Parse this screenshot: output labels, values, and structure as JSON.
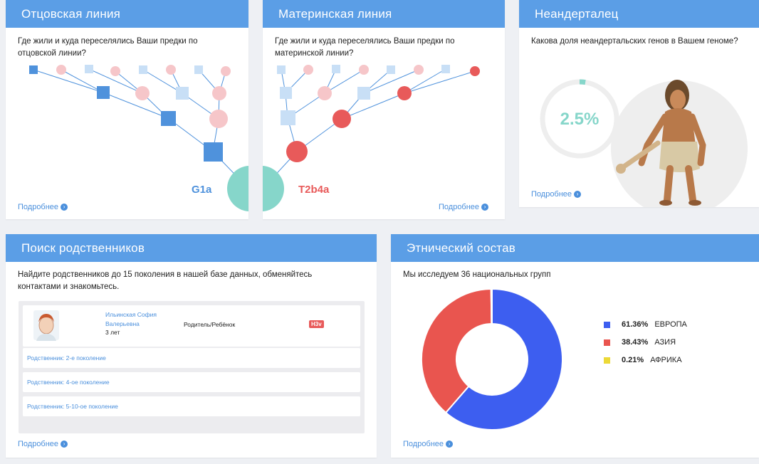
{
  "colors": {
    "header": "#5b9ee6",
    "paternal": "#4f92dc",
    "maternal": "#e85a5a",
    "teal": "#86d6ca",
    "europe": "#3d5ef0",
    "asia": "#e9554f",
    "africa": "#ecd937"
  },
  "paternal": {
    "title": "Отцовская линия",
    "desc": "Где жили и куда переселялись Ваши предки по отцовской линии?",
    "haplogroup": "G1a",
    "more": "Подробнее"
  },
  "maternal": {
    "title": "Материнская линия",
    "desc": "Где жили и куда переселялись Ваши предки по материнской линии?",
    "haplogroup": "T2b4a",
    "more": "Подробнее"
  },
  "neanderthal": {
    "title": "Неандерталец",
    "question": "Какова доля неандертальских генов в Вашем геноме?",
    "percent_label": "2.5%",
    "percent": 2.5,
    "more": "Подробнее"
  },
  "relatives": {
    "title": "Поиск родственников",
    "desc": "Найдите родственников до 15 поколения в нашей базе данных, обменяйтесь контактами и знакомьтесь.",
    "first": {
      "name": "Ильинская София Валерьевна",
      "age": "3 лет",
      "relation": "Родитель/Ребёнок",
      "badge": "Н3v"
    },
    "rows": [
      "Родственник: 2-е поколение",
      "Родственник: 4-ое поколение",
      "Родственник: 5-10-ое поколение"
    ],
    "more": "Подробнее"
  },
  "ethnic": {
    "title": "Этнический состав",
    "desc": "Мы исследуем 36 национальных групп",
    "more": "Подробнее"
  },
  "chart_data": {
    "type": "pie",
    "title": "",
    "categories": [
      "ЕВРОПА",
      "АЗИЯ",
      "АФРИКА"
    ],
    "values": [
      61.36,
      38.43,
      0.21
    ],
    "labels": [
      "61.36%",
      "38.43%",
      "0.21%"
    ],
    "colors": [
      "#3d5ef0",
      "#e9554f",
      "#ecd937"
    ],
    "donut": true,
    "legend": "right"
  }
}
